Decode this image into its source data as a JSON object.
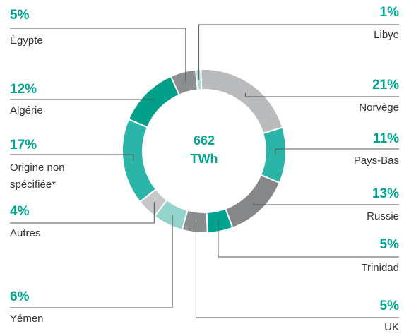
{
  "chart_data": {
    "type": "donut",
    "center_text": [
      "662",
      "TWh"
    ],
    "categories": [
      "Libye",
      "Norvège",
      "Pays-Bas",
      "Russie",
      "Trinidad",
      "UK",
      "Yémen",
      "Autres",
      "Origine non spécifiée*",
      "Algérie",
      "Égypte"
    ],
    "values": [
      1,
      21,
      11,
      13,
      5,
      5,
      6,
      4,
      17,
      12,
      5
    ],
    "value_labels": [
      "1%",
      "21%",
      "11%",
      "13%",
      "5%",
      "5%",
      "6%",
      "4%",
      "17%",
      "12%",
      "5%"
    ],
    "colors": [
      "#a9dcd6",
      "#b9bbbd",
      "#2bb5a8",
      "#858789",
      "#00a38f",
      "#8a8c8e",
      "#93d3cc",
      "#c6c7c9",
      "#2bb5a8",
      "#009f8a",
      "#8c8e90"
    ]
  }
}
